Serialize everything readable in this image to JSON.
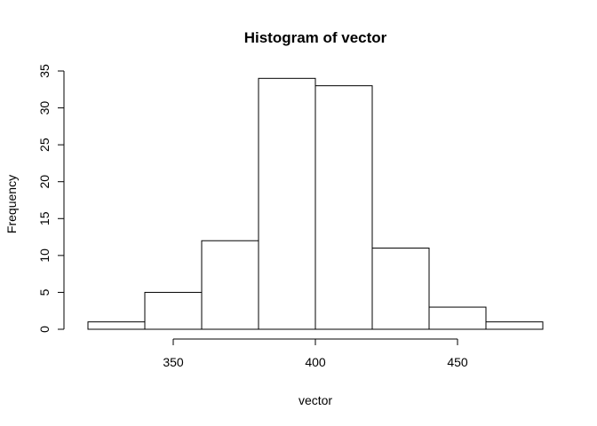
{
  "chart_data": {
    "type": "bar",
    "title": "Histogram of vector",
    "xlabel": "vector",
    "ylabel": "Frequency",
    "bins": [
      {
        "start": 320,
        "end": 340,
        "count": 1
      },
      {
        "start": 340,
        "end": 360,
        "count": 5
      },
      {
        "start": 360,
        "end": 380,
        "count": 12
      },
      {
        "start": 380,
        "end": 400,
        "count": 34
      },
      {
        "start": 400,
        "end": 420,
        "count": 33
      },
      {
        "start": 420,
        "end": 440,
        "count": 11
      },
      {
        "start": 440,
        "end": 460,
        "count": 3
      },
      {
        "start": 460,
        "end": 480,
        "count": 1
      }
    ],
    "xlim": [
      320,
      480
    ],
    "ylim": [
      0,
      35
    ],
    "x_axis_range": [
      350,
      450
    ],
    "xticks": [
      350,
      400,
      450
    ],
    "xtick_labels": [
      "350",
      "400",
      "450"
    ],
    "yticks": [
      0,
      5,
      10,
      15,
      20,
      25,
      30,
      35
    ],
    "ytick_labels": [
      "0",
      "5",
      "10",
      "15",
      "20",
      "25",
      "30",
      "35"
    ],
    "grid": false,
    "legend": "none",
    "colors": {
      "bar_fill": "#ffffff",
      "bar_stroke": "#000000"
    }
  }
}
